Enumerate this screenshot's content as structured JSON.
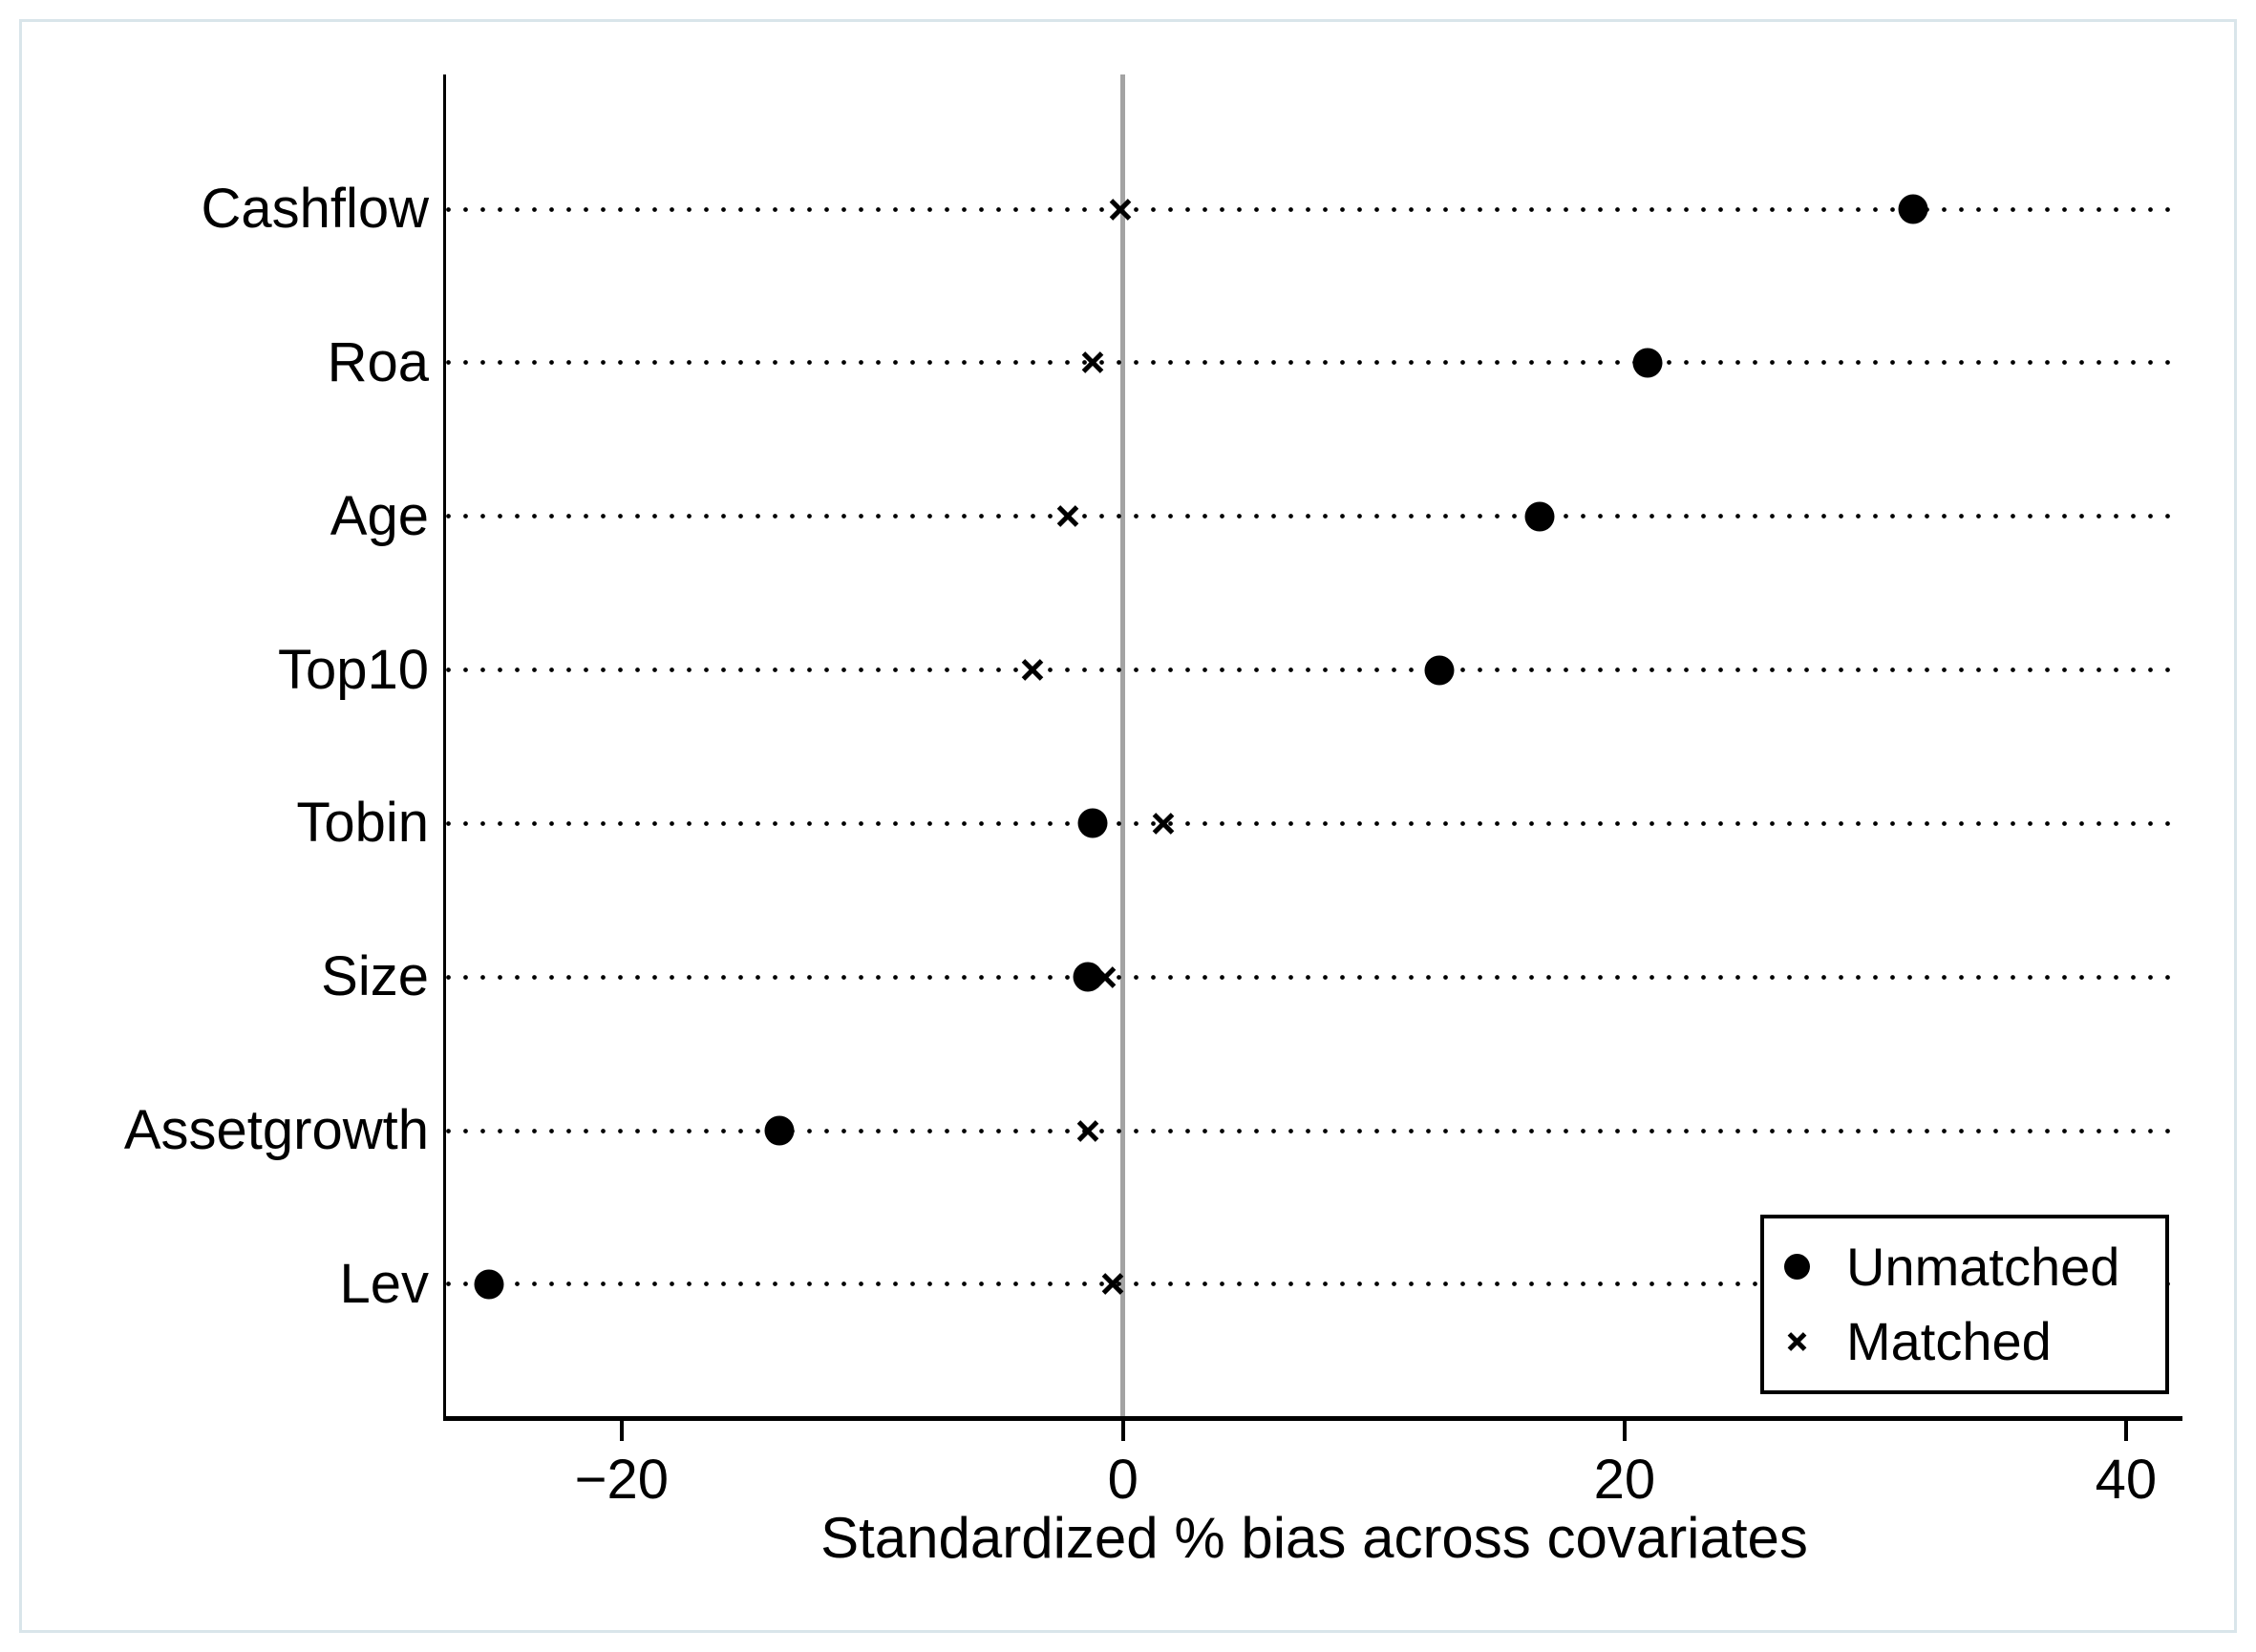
{
  "colors": {
    "marker": "#000000",
    "zero_line": "#a3a3a3",
    "frame_border": "#d9e5ea",
    "background": "#ffffff"
  },
  "chart_data": {
    "type": "scatter",
    "title": "",
    "xlabel": "Standardized % bias across covariates",
    "ylabel": "",
    "xlim": [
      -27.0,
      42.25
    ],
    "x_ticks": [
      {
        "value": -20,
        "label": "−20"
      },
      {
        "value": 0,
        "label": "0"
      },
      {
        "value": 20,
        "label": "20"
      },
      {
        "value": 40,
        "label": "40"
      }
    ],
    "grid": "dotted-horizontal",
    "zero_reference_line": 0,
    "categories": [
      "Cashflow",
      "Roa",
      "Age",
      "Top10",
      "Tobin",
      "Size",
      "Assetgrowth",
      "Lev"
    ],
    "series": [
      {
        "name": "Unmatched",
        "marker": "circle",
        "values": [
          31.5,
          20.9,
          16.6,
          12.6,
          -1.2,
          -1.4,
          -13.7,
          -25.3
        ]
      },
      {
        "name": "Matched",
        "marker": "x",
        "values": [
          -0.1,
          -1.2,
          -2.2,
          -3.6,
          1.6,
          -0.7,
          -1.4,
          -0.4
        ]
      }
    ],
    "legend": {
      "position": "bottom-right",
      "entries": [
        "Unmatched",
        "Matched"
      ]
    }
  }
}
